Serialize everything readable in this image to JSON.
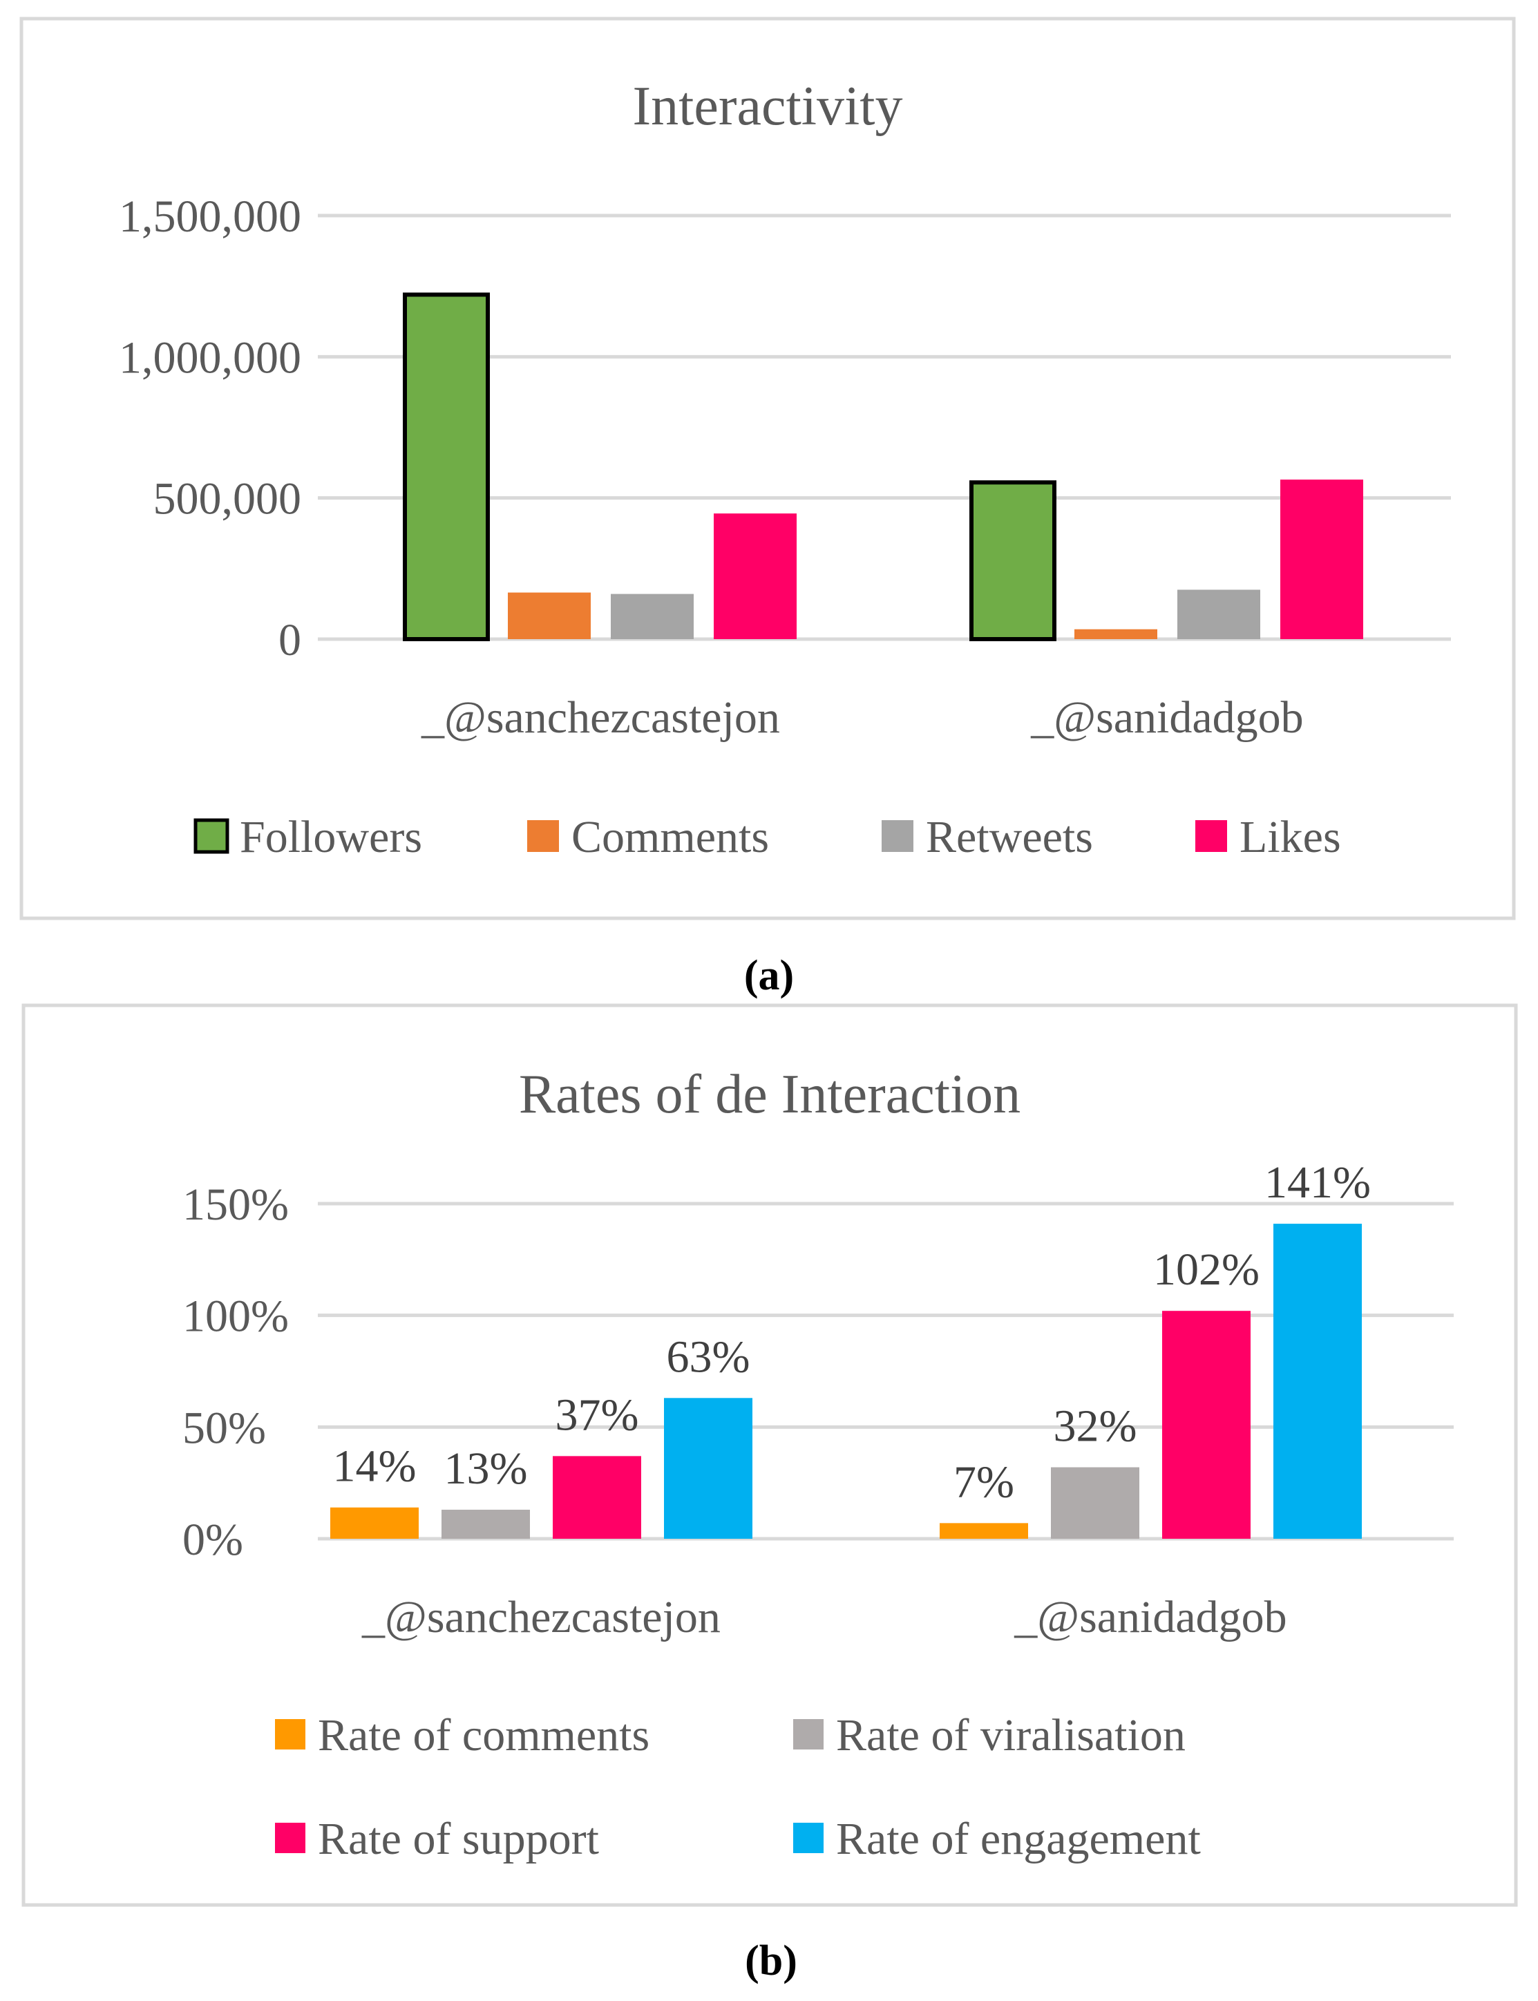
{
  "chart_data": [
    {
      "type": "bar",
      "title": "Interactivity",
      "categories": [
        "_@sanchezcastejon",
        "_@sanidadgob"
      ],
      "series": [
        {
          "name": "Followers",
          "values": [
            1220000,
            555000
          ],
          "color": "#70ad47",
          "outline": "#000000"
        },
        {
          "name": "Comments",
          "values": [
            165000,
            35000
          ],
          "color": "#ed7d31"
        },
        {
          "name": "Retweets",
          "values": [
            160000,
            175000
          ],
          "color": "#a5a5a5"
        },
        {
          "name": "Likes",
          "values": [
            445000,
            565000
          ],
          "color": "#ff0066"
        }
      ],
      "ylim": [
        0,
        1500000
      ],
      "yticks": [
        0,
        500000,
        1000000,
        1500000
      ],
      "ytick_labels": [
        "0",
        "500,000",
        "1,000,000",
        "1,500,000"
      ],
      "grid": true,
      "legend": "bottom",
      "caption": "(a)"
    },
    {
      "type": "bar",
      "title": "Rates of de Interaction",
      "categories": [
        "_@sanchezcastejon",
        "_@sanidadgob"
      ],
      "series": [
        {
          "name": "Rate of comments",
          "values": [
            14,
            7
          ],
          "labels": [
            "14%",
            "7%"
          ],
          "color": "#ff9900"
        },
        {
          "name": "Rate of viralisation",
          "values": [
            13,
            32
          ],
          "labels": [
            "13%",
            "32%"
          ],
          "color": "#afabab"
        },
        {
          "name": "Rate of support",
          "values": [
            37,
            102
          ],
          "labels": [
            "37%",
            "102%"
          ],
          "color": "#ff0066"
        },
        {
          "name": "Rate of engagement",
          "values": [
            63,
            141
          ],
          "labels": [
            "63%",
            "141%"
          ],
          "color": "#00b0f0"
        }
      ],
      "ylim": [
        0,
        150
      ],
      "yticks": [
        0,
        50,
        100,
        150
      ],
      "ytick_labels": [
        "0%",
        "50%",
        "100%",
        "150%"
      ],
      "grid": true,
      "legend": "bottom",
      "caption": "(b)"
    }
  ]
}
